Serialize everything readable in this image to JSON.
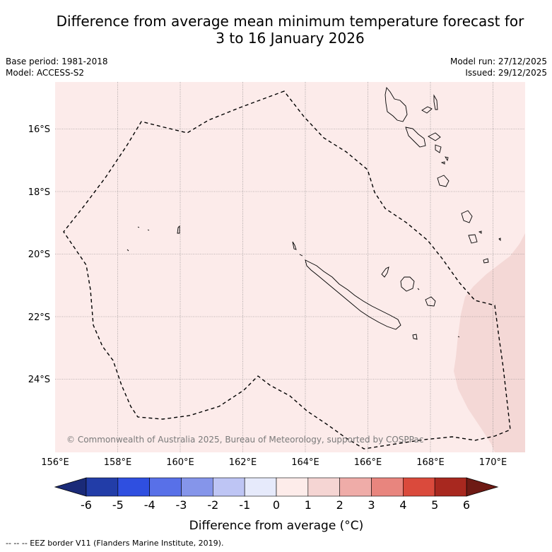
{
  "header": {
    "title_line1": "Difference from average mean minimum temperature forecast for",
    "title_line2": "3 to 16 January 2026",
    "base_period": "Base period: 1981-2018",
    "model": "Model: ACCESS-S2",
    "model_run": "Model run: 27/12/2025",
    "issued": "Issued: 29/12/2025"
  },
  "map": {
    "lat_labels": [
      "16°S",
      "18°S",
      "20°S",
      "22°S",
      "24°S"
    ],
    "lon_labels": [
      "156°E",
      "158°E",
      "160°E",
      "162°E",
      "164°E",
      "166°E",
      "168°E",
      "170°E"
    ],
    "copyright": "© Commonwealth of Australia 2025, Bureau of Meteorology, supported by COSPPac",
    "background_anomaly_color": "#fcebea",
    "warm_patch_color": "#f4d8d6"
  },
  "colorbar": {
    "ticks": [
      "-6",
      "-5",
      "-4",
      "-3",
      "-2",
      "-1",
      "0",
      "1",
      "2",
      "3",
      "4",
      "5",
      "6"
    ],
    "colors": [
      "#223da8",
      "#2f4fe0",
      "#5870e8",
      "#8595ea",
      "#bec5f4",
      "#e6eafb",
      "#fdecea",
      "#f5d5d3",
      "#efaca8",
      "#e8857e",
      "#da4a3c",
      "#a8281f"
    ],
    "under_color": "#1a2a78",
    "over_color": "#6e1a14",
    "title": "Difference from average (°C)"
  },
  "legend": {
    "eez_text": "--  --  -- EEZ border V11 (Flanders Marine Institute, 2019)."
  }
}
